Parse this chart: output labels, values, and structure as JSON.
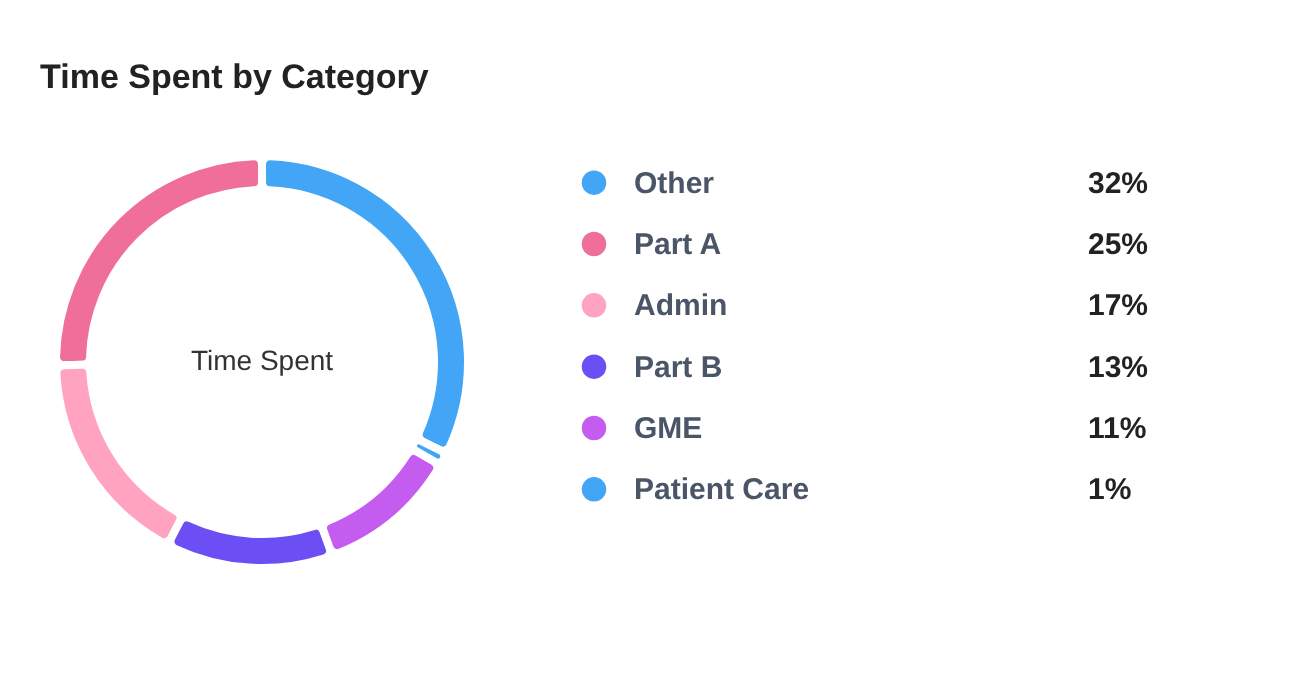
{
  "chart_data": {
    "type": "donut",
    "title": "Time Spent by Category",
    "categories": [
      "Other",
      "Part A",
      "Admin",
      "Part B",
      "GME",
      "Patient Care"
    ],
    "values": [
      32,
      25,
      17,
      13,
      11,
      1
    ],
    "value_labels": [
      "32%",
      "25%",
      "17%",
      "13%",
      "11%",
      "1%"
    ],
    "colors": [
      "#42a5f5",
      "#f06f9a",
      "#ffa3c0",
      "#6c4ef5",
      "#c45cf0",
      "#42a5f5"
    ],
    "annotations": [
      "Time Spent"
    ],
    "legend": "right"
  }
}
